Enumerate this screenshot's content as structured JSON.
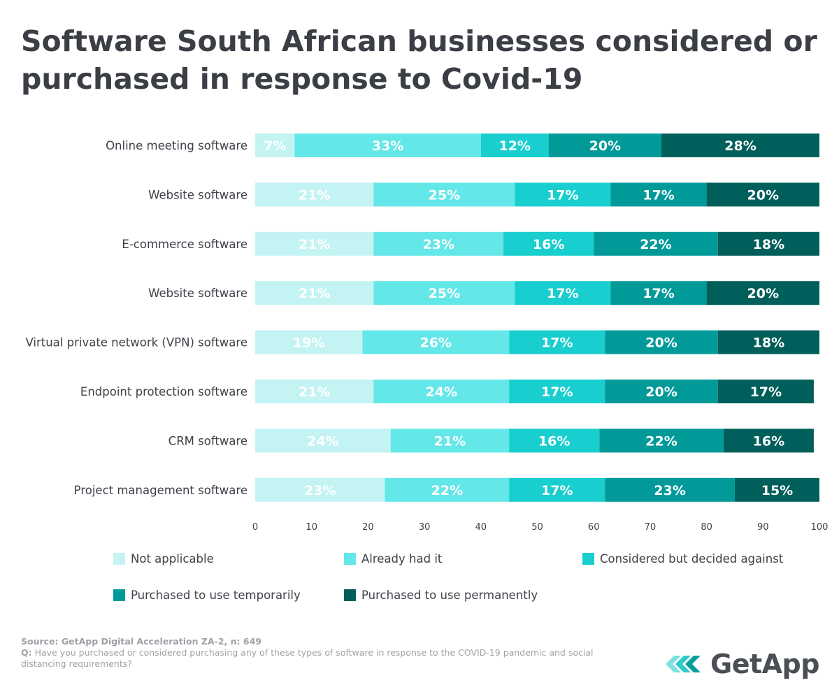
{
  "title": "Software South African businesses considered or purchased in response to Covid-19",
  "colors": {
    "not_applicable": "#c4f3f3",
    "already_had": "#64e7e8",
    "considered": "#18cece",
    "temporary": "#019a99",
    "permanent": "#005f5b"
  },
  "chart_data": {
    "type": "bar",
    "orientation": "horizontal",
    "stacked": true,
    "categories": [
      "Online meeting software",
      "Website software",
      "E-commerce software",
      "Website software",
      "Virtual private network (VPN) software",
      "Endpoint protection software",
      "CRM software",
      "Project management software"
    ],
    "series": [
      {
        "name": "Not applicable",
        "color_key": "not_applicable",
        "values": [
          7,
          21,
          21,
          21,
          19,
          21,
          24,
          23
        ]
      },
      {
        "name": "Already had it",
        "color_key": "already_had",
        "values": [
          33,
          25,
          23,
          25,
          26,
          24,
          21,
          22
        ]
      },
      {
        "name": "Considered but decided against",
        "color_key": "considered",
        "values": [
          12,
          17,
          16,
          17,
          17,
          17,
          16,
          17
        ]
      },
      {
        "name": "Purchased to use temporarily",
        "color_key": "temporary",
        "values": [
          20,
          17,
          22,
          17,
          20,
          20,
          22,
          23
        ]
      },
      {
        "name": "Purchased to use permanently",
        "color_key": "permanent",
        "values": [
          28,
          20,
          18,
          20,
          18,
          17,
          16,
          15
        ]
      }
    ],
    "label_suffix": "%",
    "xlim": [
      0,
      100
    ],
    "xticks": [
      0,
      10,
      20,
      30,
      40,
      50,
      60,
      70,
      80,
      90,
      100
    ],
    "grid": false,
    "legend_position": "bottom"
  },
  "legend": {
    "items": [
      {
        "label": "Not applicable",
        "color_key": "not_applicable"
      },
      {
        "label": "Already had it",
        "color_key": "already_had"
      },
      {
        "label": "Considered but decided against",
        "color_key": "considered"
      },
      {
        "label": "Purchased to use temporarily",
        "color_key": "temporary"
      },
      {
        "label": "Purchased to use permanently",
        "color_key": "permanent"
      }
    ]
  },
  "footer": {
    "source": "Source: GetApp Digital Acceleration ZA-2, n: 649",
    "question_prefix": "Q:",
    "question": " Have you purchased or considered purchasing any of these types of software in response to the COVID-19 pandemic and social distancing requirements?"
  },
  "logo": {
    "text": "GetApp",
    "icon": "getapp-chevrons-icon"
  }
}
